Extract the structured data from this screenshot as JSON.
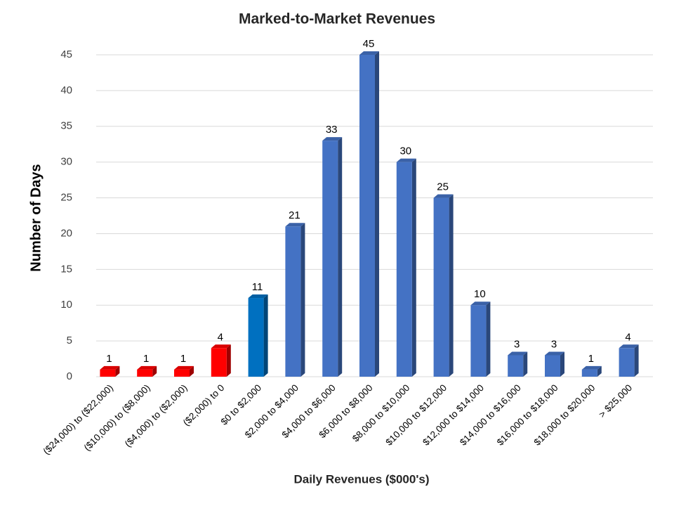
{
  "chart_data": {
    "type": "bar",
    "title": "Marked-to-Market Revenues",
    "x_label": "Daily Revenues ($000's)",
    "y_label": "Number of Days",
    "categories": [
      "($24,000) to ($22,000)",
      "($10,000) to ($8,000)",
      "($4,000) to ($2,000)",
      "($2,000) to 0",
      "$0 to $2,000",
      "$2,000 to $4,000",
      "$4,000 to $6,000",
      "$6,000 to $8,000",
      "$8,000 to $10,000",
      "$10,000 to $12,000",
      "$12,000 to $14,000",
      "$14,000 to $16,000",
      "$16,000 to $18,000",
      "$18,000 to $20,000",
      "> $25,000"
    ],
    "values": [
      1,
      1,
      1,
      4,
      11,
      21,
      33,
      45,
      30,
      25,
      10,
      3,
      3,
      1,
      4
    ],
    "colors": [
      "#ff0000",
      "#ff0000",
      "#ff0000",
      "#ff0000",
      "#0070c0",
      "#4472c4",
      "#4472c4",
      "#4472c4",
      "#4472c4",
      "#4472c4",
      "#4472c4",
      "#4472c4",
      "#4472c4",
      "#4472c4",
      "#4472c4"
    ],
    "ylim": [
      0,
      45
    ],
    "yticks": [
      0,
      5,
      10,
      15,
      20,
      25,
      30,
      35,
      40,
      45
    ],
    "grid": true
  }
}
